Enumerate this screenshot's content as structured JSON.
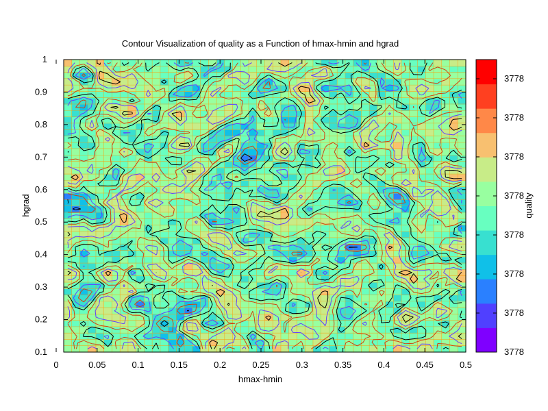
{
  "chart_data": {
    "type": "heatmap",
    "title": "Contour Visualization of quality as a Function of hmax-hmin and hgrad",
    "xlabel": "hmax-hmin",
    "ylabel": "hgrad",
    "colorbar_label": "quality",
    "xlim": [
      0,
      0.5
    ],
    "ylim": [
      0.1,
      1
    ],
    "x_ticks": [
      "0",
      "0.05",
      "0.1",
      "0.15",
      "0.2",
      "0.25",
      "0.3",
      "0.35",
      "0.4",
      "0.45",
      "0.5"
    ],
    "y_ticks": [
      "0.1",
      "0.2",
      "0.3",
      "0.4",
      "0.5",
      "0.6",
      "0.7",
      "0.8",
      "0.9",
      "1"
    ],
    "colorbar_ticks": [
      "3778",
      "3778",
      "3778",
      "3778",
      "3778",
      "3778",
      "3778",
      "3778"
    ],
    "colormap": [
      "#7f00ff",
      "#5040ff",
      "#2a80ff",
      "#10c0e8",
      "#38e0d0",
      "#68ffc0",
      "#98ffa0",
      "#c8ec88",
      "#f8c070",
      "#ff8848",
      "#ff4020",
      "#ff0000"
    ],
    "contour_colors": [
      "#000000",
      "#d04010",
      "#6040ff"
    ],
    "grid": true,
    "grid_color": "#ff9800",
    "field": {
      "nx": 50,
      "ny": 46,
      "note_level_range": [
        2,
        8
      ]
    }
  }
}
